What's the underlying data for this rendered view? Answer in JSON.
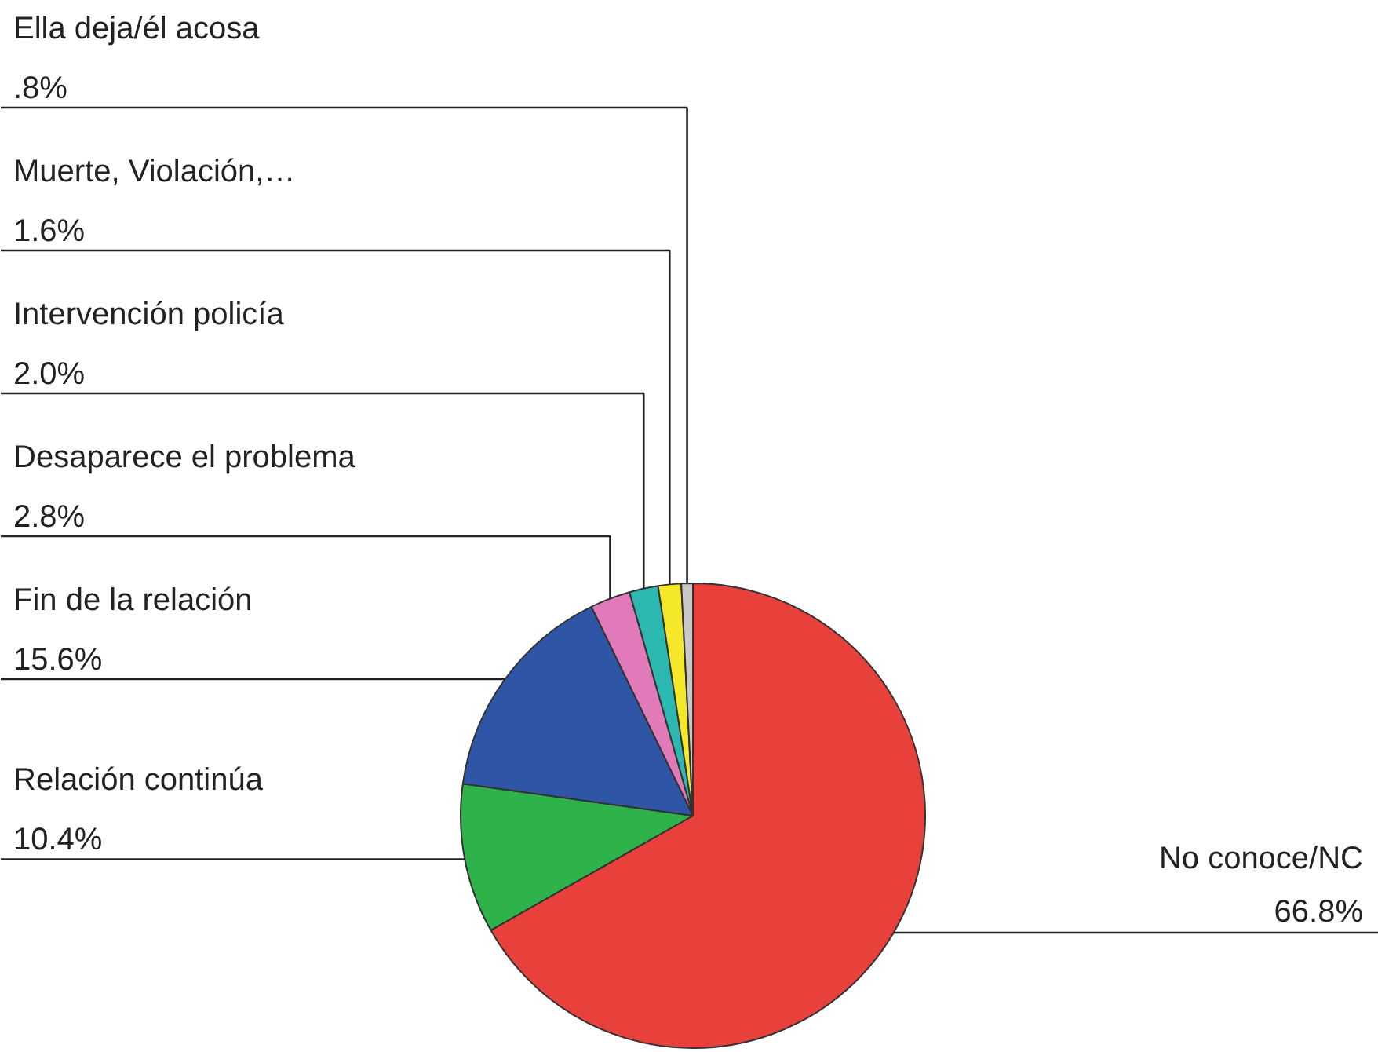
{
  "chart_data": {
    "type": "pie",
    "categories": [
      "No conoce/NC",
      "Relación continúa",
      "Fin de la relación",
      "Desaparece el problema",
      "Intervención policía",
      "Muerte, Violación,…",
      "Ella  deja/él acosa"
    ],
    "values": [
      66.8,
      10.4,
      15.6,
      2.8,
      2.0,
      1.6,
      0.8
    ],
    "value_labels": [
      "66.8%",
      "10.4%",
      "15.6%",
      "2.8%",
      "2.0%",
      "1.6%",
      ".8%"
    ],
    "colors": [
      "#e8403a",
      "#2db34a",
      "#2f56a6",
      "#e07ab8",
      "#2bb8b0",
      "#f5e82a",
      "#c8c8c8"
    ]
  }
}
